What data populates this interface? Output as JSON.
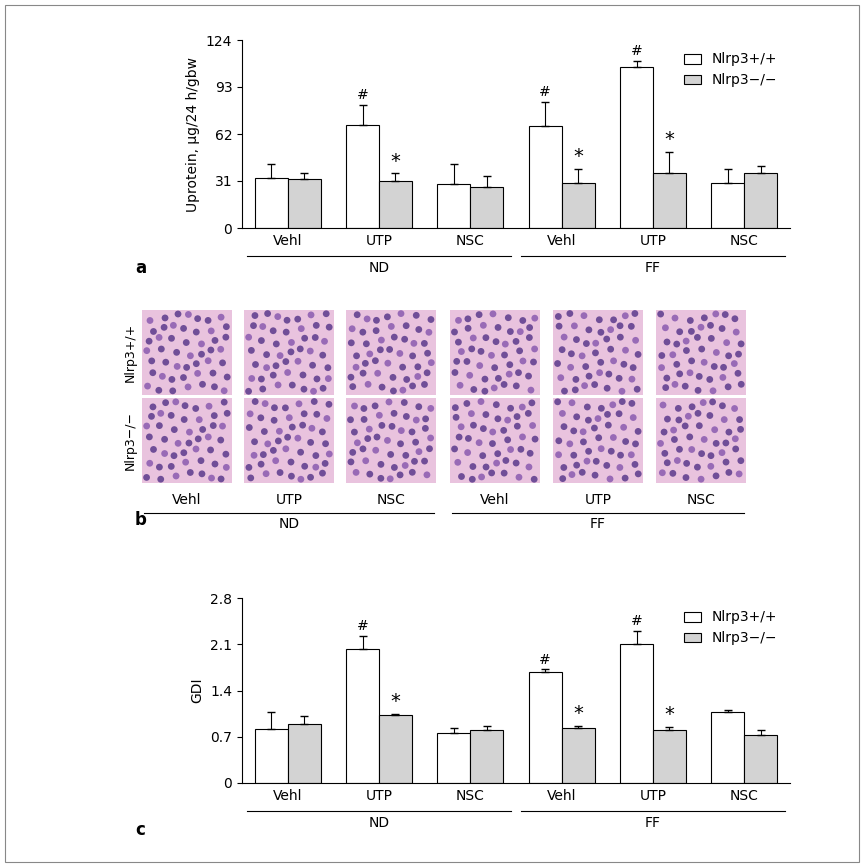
{
  "chart_data": [
    {
      "type": "bar",
      "label": "a",
      "y_label": "Uprotein, µg/24 h/gbw",
      "categories": [
        "Vehl",
        "UTP",
        "NSC",
        "Vehl",
        "UTP",
        "NSC"
      ],
      "groups": [
        {
          "label": "ND",
          "size": 3
        },
        {
          "label": "FF",
          "size": 3
        }
      ],
      "series": [
        {
          "name": "Nlrp3+/+",
          "color": "#ffffff",
          "values": [
            33,
            68,
            29,
            67,
            106,
            30
          ],
          "errors": [
            9,
            13,
            13,
            16,
            4,
            9
          ],
          "marks": [
            null,
            "#",
            null,
            "#",
            "#",
            null
          ]
        },
        {
          "name": "Nlrp3−/−",
          "color": "#d3d3d3",
          "values": [
            32,
            31,
            27,
            30,
            36,
            36
          ],
          "errors": [
            4,
            5,
            7,
            9,
            14,
            5
          ],
          "marks": [
            null,
            "*",
            null,
            "*",
            "*",
            null
          ]
        }
      ],
      "ylim": [
        0,
        124
      ],
      "yticks": [
        0,
        31,
        62,
        93,
        124
      ],
      "legend": "upper right"
    },
    {
      "type": "bar",
      "label": "c",
      "y_label": "GDI",
      "categories": [
        "Vehl",
        "UTP",
        "NSC",
        "Vehl",
        "UTP",
        "NSC"
      ],
      "groups": [
        {
          "label": "ND",
          "size": 3
        },
        {
          "label": "FF",
          "size": 3
        }
      ],
      "series": [
        {
          "name": "Nlrp3+/+",
          "color": "#ffffff",
          "values": [
            0.82,
            2.03,
            0.76,
            1.68,
            2.1,
            1.08
          ],
          "errors": [
            0.25,
            0.2,
            0.07,
            0.04,
            0.2,
            0.02
          ],
          "marks": [
            null,
            "#",
            null,
            "#",
            "#",
            null
          ]
        },
        {
          "name": "Nlrp3−/−",
          "color": "#d3d3d3",
          "values": [
            0.9,
            1.03,
            0.8,
            0.83,
            0.8,
            0.73
          ],
          "errors": [
            0.12,
            0.02,
            0.07,
            0.03,
            0.05,
            0.07
          ],
          "marks": [
            null,
            "*",
            null,
            "*",
            "*",
            null
          ]
        }
      ],
      "ylim": [
        0,
        2.8
      ],
      "yticks": [
        0,
        0.7,
        1.4,
        2.1,
        2.8
      ],
      "legend": "upper right"
    }
  ],
  "image_panel": {
    "label": "b",
    "rows": [
      "Nlrp3+/+",
      "Nlrp3−/−"
    ],
    "columns": [
      "Vehl",
      "UTP",
      "NSC",
      "Vehl",
      "UTP",
      "NSC"
    ],
    "groups": [
      {
        "label": "ND",
        "size": 3
      },
      {
        "label": "FF",
        "size": 3
      }
    ]
  }
}
